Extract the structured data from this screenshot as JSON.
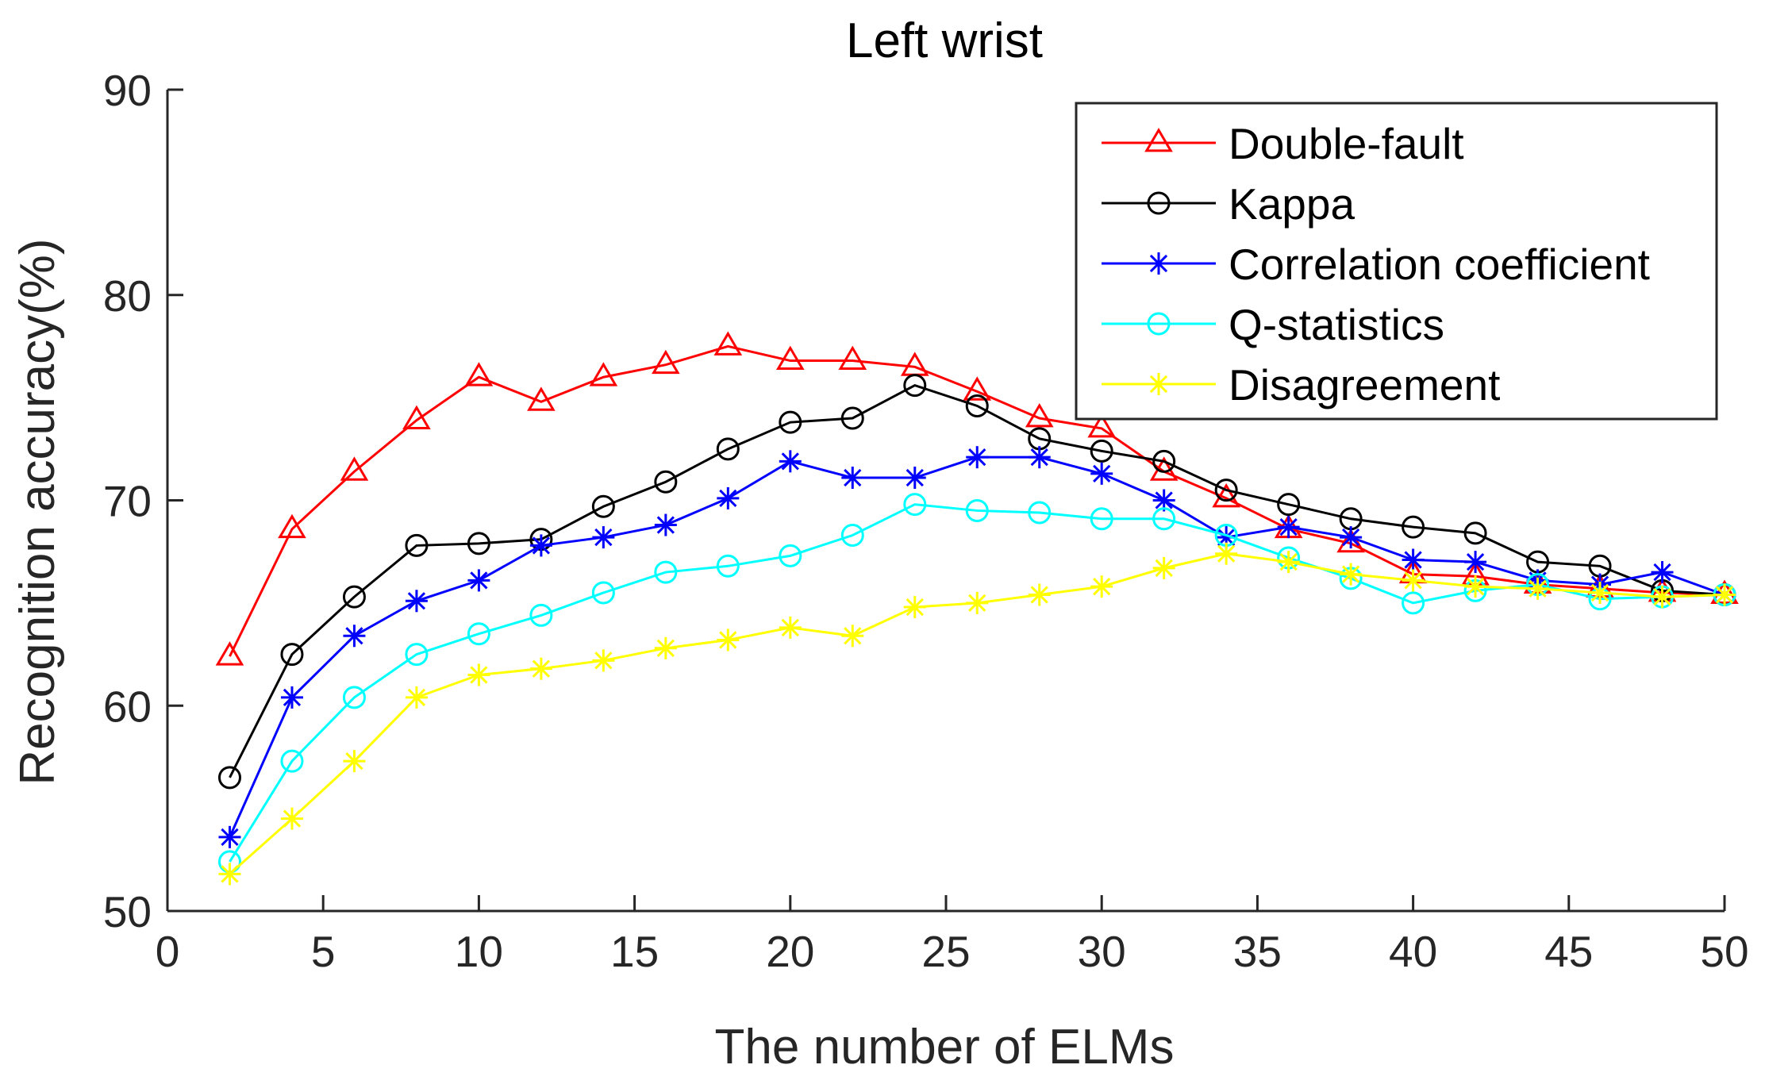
{
  "chart_data": {
    "type": "line",
    "title": "Left wrist",
    "xlabel": "The number of ELMs",
    "ylabel": "Recognition accuracy(%)",
    "xlim": [
      0,
      50
    ],
    "ylim": [
      50,
      90
    ],
    "xticks": [
      0,
      5,
      10,
      15,
      20,
      25,
      30,
      35,
      40,
      45,
      50
    ],
    "yticks": [
      50,
      60,
      70,
      80,
      90
    ],
    "grid": false,
    "legend_position": "top-right",
    "x": [
      2,
      4,
      6,
      8,
      10,
      12,
      14,
      16,
      18,
      20,
      22,
      24,
      26,
      28,
      30,
      32,
      34,
      36,
      38,
      40,
      42,
      44,
      46,
      48,
      50
    ],
    "series": [
      {
        "name": "Double-fault",
        "color": "#ff0000",
        "marker": "triangle",
        "values": [
          62.4,
          68.6,
          71.4,
          73.9,
          76.0,
          74.8,
          76.0,
          76.6,
          77.5,
          76.8,
          76.8,
          76.5,
          75.3,
          74.0,
          73.5,
          71.4,
          70.1,
          68.6,
          67.9,
          66.4,
          66.3,
          65.9,
          65.7,
          65.5,
          65.4
        ]
      },
      {
        "name": "Kappa",
        "color": "#000000",
        "marker": "circle",
        "values": [
          56.5,
          62.5,
          65.3,
          67.8,
          67.9,
          68.1,
          69.7,
          70.9,
          72.5,
          73.8,
          74.0,
          75.6,
          74.6,
          73.0,
          72.4,
          71.9,
          70.5,
          69.8,
          69.1,
          68.7,
          68.4,
          67.0,
          66.8,
          65.6,
          65.4
        ]
      },
      {
        "name": "Correlation coefficient",
        "color": "#0000ff",
        "marker": "asterisk",
        "values": [
          53.6,
          60.4,
          63.4,
          65.1,
          66.1,
          67.8,
          68.2,
          68.8,
          70.1,
          71.9,
          71.1,
          71.1,
          72.1,
          72.1,
          71.3,
          70.0,
          68.2,
          68.7,
          68.2,
          67.1,
          67.0,
          66.1,
          65.9,
          66.5,
          65.4
        ]
      },
      {
        "name": "Q-statistics",
        "color": "#00ffff",
        "marker": "circle",
        "values": [
          52.4,
          57.3,
          60.4,
          62.5,
          63.5,
          64.4,
          65.5,
          66.5,
          66.8,
          67.3,
          68.3,
          69.8,
          69.5,
          69.4,
          69.1,
          69.1,
          68.3,
          67.2,
          66.2,
          65.0,
          65.6,
          65.9,
          65.2,
          65.3,
          65.4
        ]
      },
      {
        "name": "Disagreement",
        "color": "#ffff00",
        "marker": "asterisk",
        "values": [
          51.8,
          54.5,
          57.3,
          60.4,
          61.5,
          61.8,
          62.2,
          62.8,
          63.2,
          63.8,
          63.4,
          64.8,
          65.0,
          65.4,
          65.8,
          66.7,
          67.4,
          67.0,
          66.4,
          66.1,
          65.8,
          65.7,
          65.5,
          65.3,
          65.4
        ]
      }
    ]
  }
}
